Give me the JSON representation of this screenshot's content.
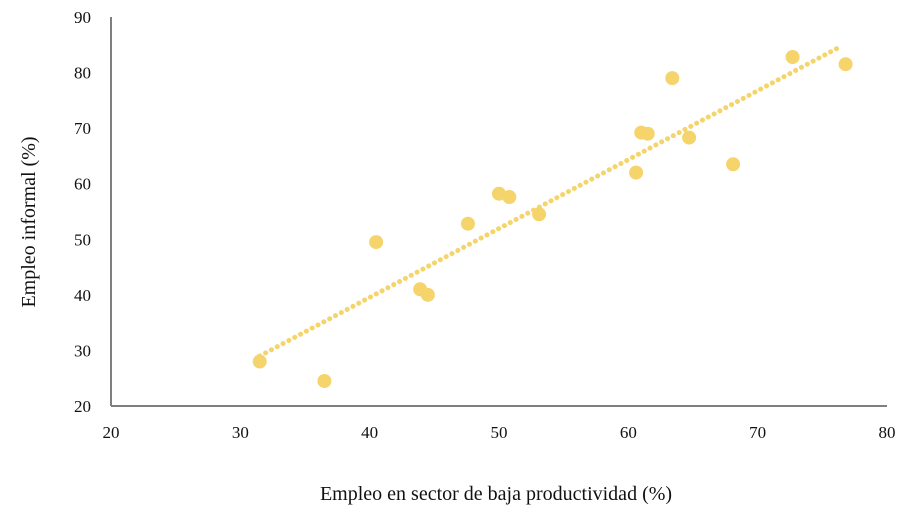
{
  "chart_data": {
    "type": "scatter",
    "xlabel": "Empleo en sector de baja productividad (%)",
    "ylabel": "Empleo informal (%)",
    "xlim": [
      20,
      80
    ],
    "ylim": [
      20,
      90
    ],
    "xticks": [
      "20",
      "30",
      "40",
      "50",
      "60",
      "70",
      "80"
    ],
    "yticks": [
      "20",
      "30",
      "40",
      "50",
      "60",
      "70",
      "80",
      "90"
    ],
    "grid": false,
    "legend": "none",
    "marker_color": "#f5d46b",
    "trendline": {
      "style": "dotted",
      "x": [
        31.5,
        76.5
      ],
      "y": [
        29.0,
        84.8
      ]
    },
    "points": [
      {
        "x": 31.5,
        "y": 28.0
      },
      {
        "x": 36.5,
        "y": 24.5
      },
      {
        "x": 40.5,
        "y": 49.5
      },
      {
        "x": 43.9,
        "y": 41.0
      },
      {
        "x": 44.5,
        "y": 40.0
      },
      {
        "x": 47.6,
        "y": 52.8
      },
      {
        "x": 50.0,
        "y": 58.2
      },
      {
        "x": 50.8,
        "y": 57.6
      },
      {
        "x": 53.1,
        "y": 54.5
      },
      {
        "x": 60.6,
        "y": 62.0
      },
      {
        "x": 61.0,
        "y": 69.2
      },
      {
        "x": 61.5,
        "y": 69.0
      },
      {
        "x": 63.4,
        "y": 79.0
      },
      {
        "x": 64.7,
        "y": 68.3
      },
      {
        "x": 68.1,
        "y": 63.5
      },
      {
        "x": 72.7,
        "y": 82.8
      },
      {
        "x": 76.8,
        "y": 81.5
      }
    ]
  }
}
